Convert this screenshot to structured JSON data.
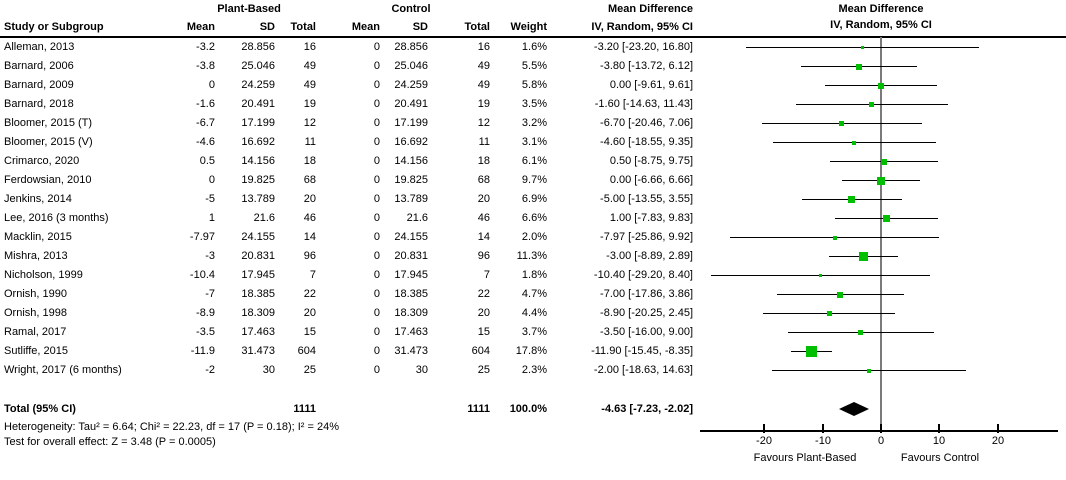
{
  "header": {
    "study": "Study or Subgroup",
    "group1": "Plant-Based",
    "group2": "Control",
    "mean": "Mean",
    "sd": "SD",
    "total": "Total",
    "weight": "Weight",
    "md_title": "Mean Difference",
    "md_subtitle": "IV, Random, 95% CI"
  },
  "chart_data": {
    "type": "scatter",
    "subtype": "forest-plot",
    "title": "Mean Difference",
    "effect_measure": "IV, Random, 95% CI",
    "axis": {
      "min": -30,
      "max": 31,
      "ticks": [
        -20,
        -10,
        0,
        10,
        20
      ],
      "left_label": "Favours Plant-Based",
      "right_label": "Favours Control"
    },
    "studies": [
      {
        "name": "Alleman, 2013",
        "mean1": "-3.2",
        "sd1": "28.856",
        "n1": "16",
        "mean2": "0",
        "sd2": "28.856",
        "n2": "16",
        "weight": "1.6%",
        "weight_val": 1.6,
        "md_text": "-3.20 [-23.20, 16.80]",
        "est": -3.2,
        "lo": -23.2,
        "hi": 16.8
      },
      {
        "name": "Barnard, 2006",
        "mean1": "-3.8",
        "sd1": "25.046",
        "n1": "49",
        "mean2": "0",
        "sd2": "25.046",
        "n2": "49",
        "weight": "5.5%",
        "weight_val": 5.5,
        "md_text": "-3.80 [-13.72, 6.12]",
        "est": -3.8,
        "lo": -13.72,
        "hi": 6.12
      },
      {
        "name": "Barnard, 2009",
        "mean1": "0",
        "sd1": "24.259",
        "n1": "49",
        "mean2": "0",
        "sd2": "24.259",
        "n2": "49",
        "weight": "5.8%",
        "weight_val": 5.8,
        "md_text": "0.00 [-9.61, 9.61]",
        "est": 0,
        "lo": -9.61,
        "hi": 9.61
      },
      {
        "name": "Barnard, 2018",
        "mean1": "-1.6",
        "sd1": "20.491",
        "n1": "19",
        "mean2": "0",
        "sd2": "20.491",
        "n2": "19",
        "weight": "3.5%",
        "weight_val": 3.5,
        "md_text": "-1.60 [-14.63, 11.43]",
        "est": -1.6,
        "lo": -14.63,
        "hi": 11.43
      },
      {
        "name": "Bloomer, 2015 (T)",
        "mean1": "-6.7",
        "sd1": "17.199",
        "n1": "12",
        "mean2": "0",
        "sd2": "17.199",
        "n2": "12",
        "weight": "3.2%",
        "weight_val": 3.2,
        "md_text": "-6.70 [-20.46, 7.06]",
        "est": -6.7,
        "lo": -20.46,
        "hi": 7.06
      },
      {
        "name": "Bloomer, 2015 (V)",
        "mean1": "-4.6",
        "sd1": "16.692",
        "n1": "11",
        "mean2": "0",
        "sd2": "16.692",
        "n2": "11",
        "weight": "3.1%",
        "weight_val": 3.1,
        "md_text": "-4.60 [-18.55, 9.35]",
        "est": -4.6,
        "lo": -18.55,
        "hi": 9.35
      },
      {
        "name": "Crimarco, 2020",
        "mean1": "0.5",
        "sd1": "14.156",
        "n1": "18",
        "mean2": "0",
        "sd2": "14.156",
        "n2": "18",
        "weight": "6.1%",
        "weight_val": 6.1,
        "md_text": "0.50 [-8.75, 9.75]",
        "est": 0.5,
        "lo": -8.75,
        "hi": 9.75
      },
      {
        "name": "Ferdowsian, 2010",
        "mean1": "0",
        "sd1": "19.825",
        "n1": "68",
        "mean2": "0",
        "sd2": "19.825",
        "n2": "68",
        "weight": "9.7%",
        "weight_val": 9.7,
        "md_text": "0.00 [-6.66, 6.66]",
        "est": 0,
        "lo": -6.66,
        "hi": 6.66
      },
      {
        "name": "Jenkins, 2014",
        "mean1": "-5",
        "sd1": "13.789",
        "n1": "20",
        "mean2": "0",
        "sd2": "13.789",
        "n2": "20",
        "weight": "6.9%",
        "weight_val": 6.9,
        "md_text": "-5.00 [-13.55, 3.55]",
        "est": -5,
        "lo": -13.55,
        "hi": 3.55
      },
      {
        "name": "Lee, 2016 (3 months)",
        "mean1": "1",
        "sd1": "21.6",
        "n1": "46",
        "mean2": "0",
        "sd2": "21.6",
        "n2": "46",
        "weight": "6.6%",
        "weight_val": 6.6,
        "md_text": "1.00 [-7.83, 9.83]",
        "est": 1,
        "lo": -7.83,
        "hi": 9.83
      },
      {
        "name": "Macklin, 2015",
        "mean1": "-7.97",
        "sd1": "24.155",
        "n1": "14",
        "mean2": "0",
        "sd2": "24.155",
        "n2": "14",
        "weight": "2.0%",
        "weight_val": 2.0,
        "md_text": "-7.97 [-25.86, 9.92]",
        "est": -7.97,
        "lo": -25.86,
        "hi": 9.92
      },
      {
        "name": "Mishra, 2013",
        "mean1": "-3",
        "sd1": "20.831",
        "n1": "96",
        "mean2": "0",
        "sd2": "20.831",
        "n2": "96",
        "weight": "11.3%",
        "weight_val": 11.3,
        "md_text": "-3.00 [-8.89, 2.89]",
        "est": -3,
        "lo": -8.89,
        "hi": 2.89
      },
      {
        "name": "Nicholson, 1999",
        "mean1": "-10.4",
        "sd1": "17.945",
        "n1": "7",
        "mean2": "0",
        "sd2": "17.945",
        "n2": "7",
        "weight": "1.8%",
        "weight_val": 1.8,
        "md_text": "-10.40 [-29.20, 8.40]",
        "est": -10.4,
        "lo": -29.2,
        "hi": 8.4
      },
      {
        "name": "Ornish, 1990",
        "mean1": "-7",
        "sd1": "18.385",
        "n1": "22",
        "mean2": "0",
        "sd2": "18.385",
        "n2": "22",
        "weight": "4.7%",
        "weight_val": 4.7,
        "md_text": "-7.00 [-17.86, 3.86]",
        "est": -7,
        "lo": -17.86,
        "hi": 3.86
      },
      {
        "name": "Ornish, 1998",
        "mean1": "-8.9",
        "sd1": "18.309",
        "n1": "20",
        "mean2": "0",
        "sd2": "18.309",
        "n2": "20",
        "weight": "4.4%",
        "weight_val": 4.4,
        "md_text": "-8.90 [-20.25, 2.45]",
        "est": -8.9,
        "lo": -20.25,
        "hi": 2.45
      },
      {
        "name": "Ramal, 2017",
        "mean1": "-3.5",
        "sd1": "17.463",
        "n1": "15",
        "mean2": "0",
        "sd2": "17.463",
        "n2": "15",
        "weight": "3.7%",
        "weight_val": 3.7,
        "md_text": "-3.50 [-16.00, 9.00]",
        "est": -3.5,
        "lo": -16,
        "hi": 9
      },
      {
        "name": "Sutliffe, 2015",
        "mean1": "-11.9",
        "sd1": "31.473",
        "n1": "604",
        "mean2": "0",
        "sd2": "31.473",
        "n2": "604",
        "weight": "17.8%",
        "weight_val": 17.8,
        "md_text": "-11.90 [-15.45, -8.35]",
        "est": -11.9,
        "lo": -15.45,
        "hi": -8.35
      },
      {
        "name": "Wright, 2017 (6 months)",
        "mean1": "-2",
        "sd1": "30",
        "n1": "25",
        "mean2": "0",
        "sd2": "30",
        "n2": "25",
        "weight": "2.3%",
        "weight_val": 2.3,
        "md_text": "-2.00 [-18.63, 14.63]",
        "est": -2,
        "lo": -18.63,
        "hi": 14.63
      }
    ],
    "total": {
      "label": "Total (95% CI)",
      "n1": "1111",
      "n2": "1111",
      "weight": "100.0%",
      "md_text": "-4.63 [-7.23, -2.02]",
      "est": -4.63,
      "lo": -7.23,
      "hi": -2.02
    }
  },
  "footnotes": {
    "heterogeneity": "Heterogeneity: Tau² = 6.64; Chi² = 22.23, df = 17 (P = 0.18); I² = 24%",
    "overall_effect": "Test for overall effect: Z = 3.48 (P = 0.0005)"
  },
  "colors": {
    "marker": "#00bf00",
    "ci_line": "#000000",
    "zero_line": "#7a7a7a",
    "diamond": "#000000",
    "axis": "#000000"
  }
}
